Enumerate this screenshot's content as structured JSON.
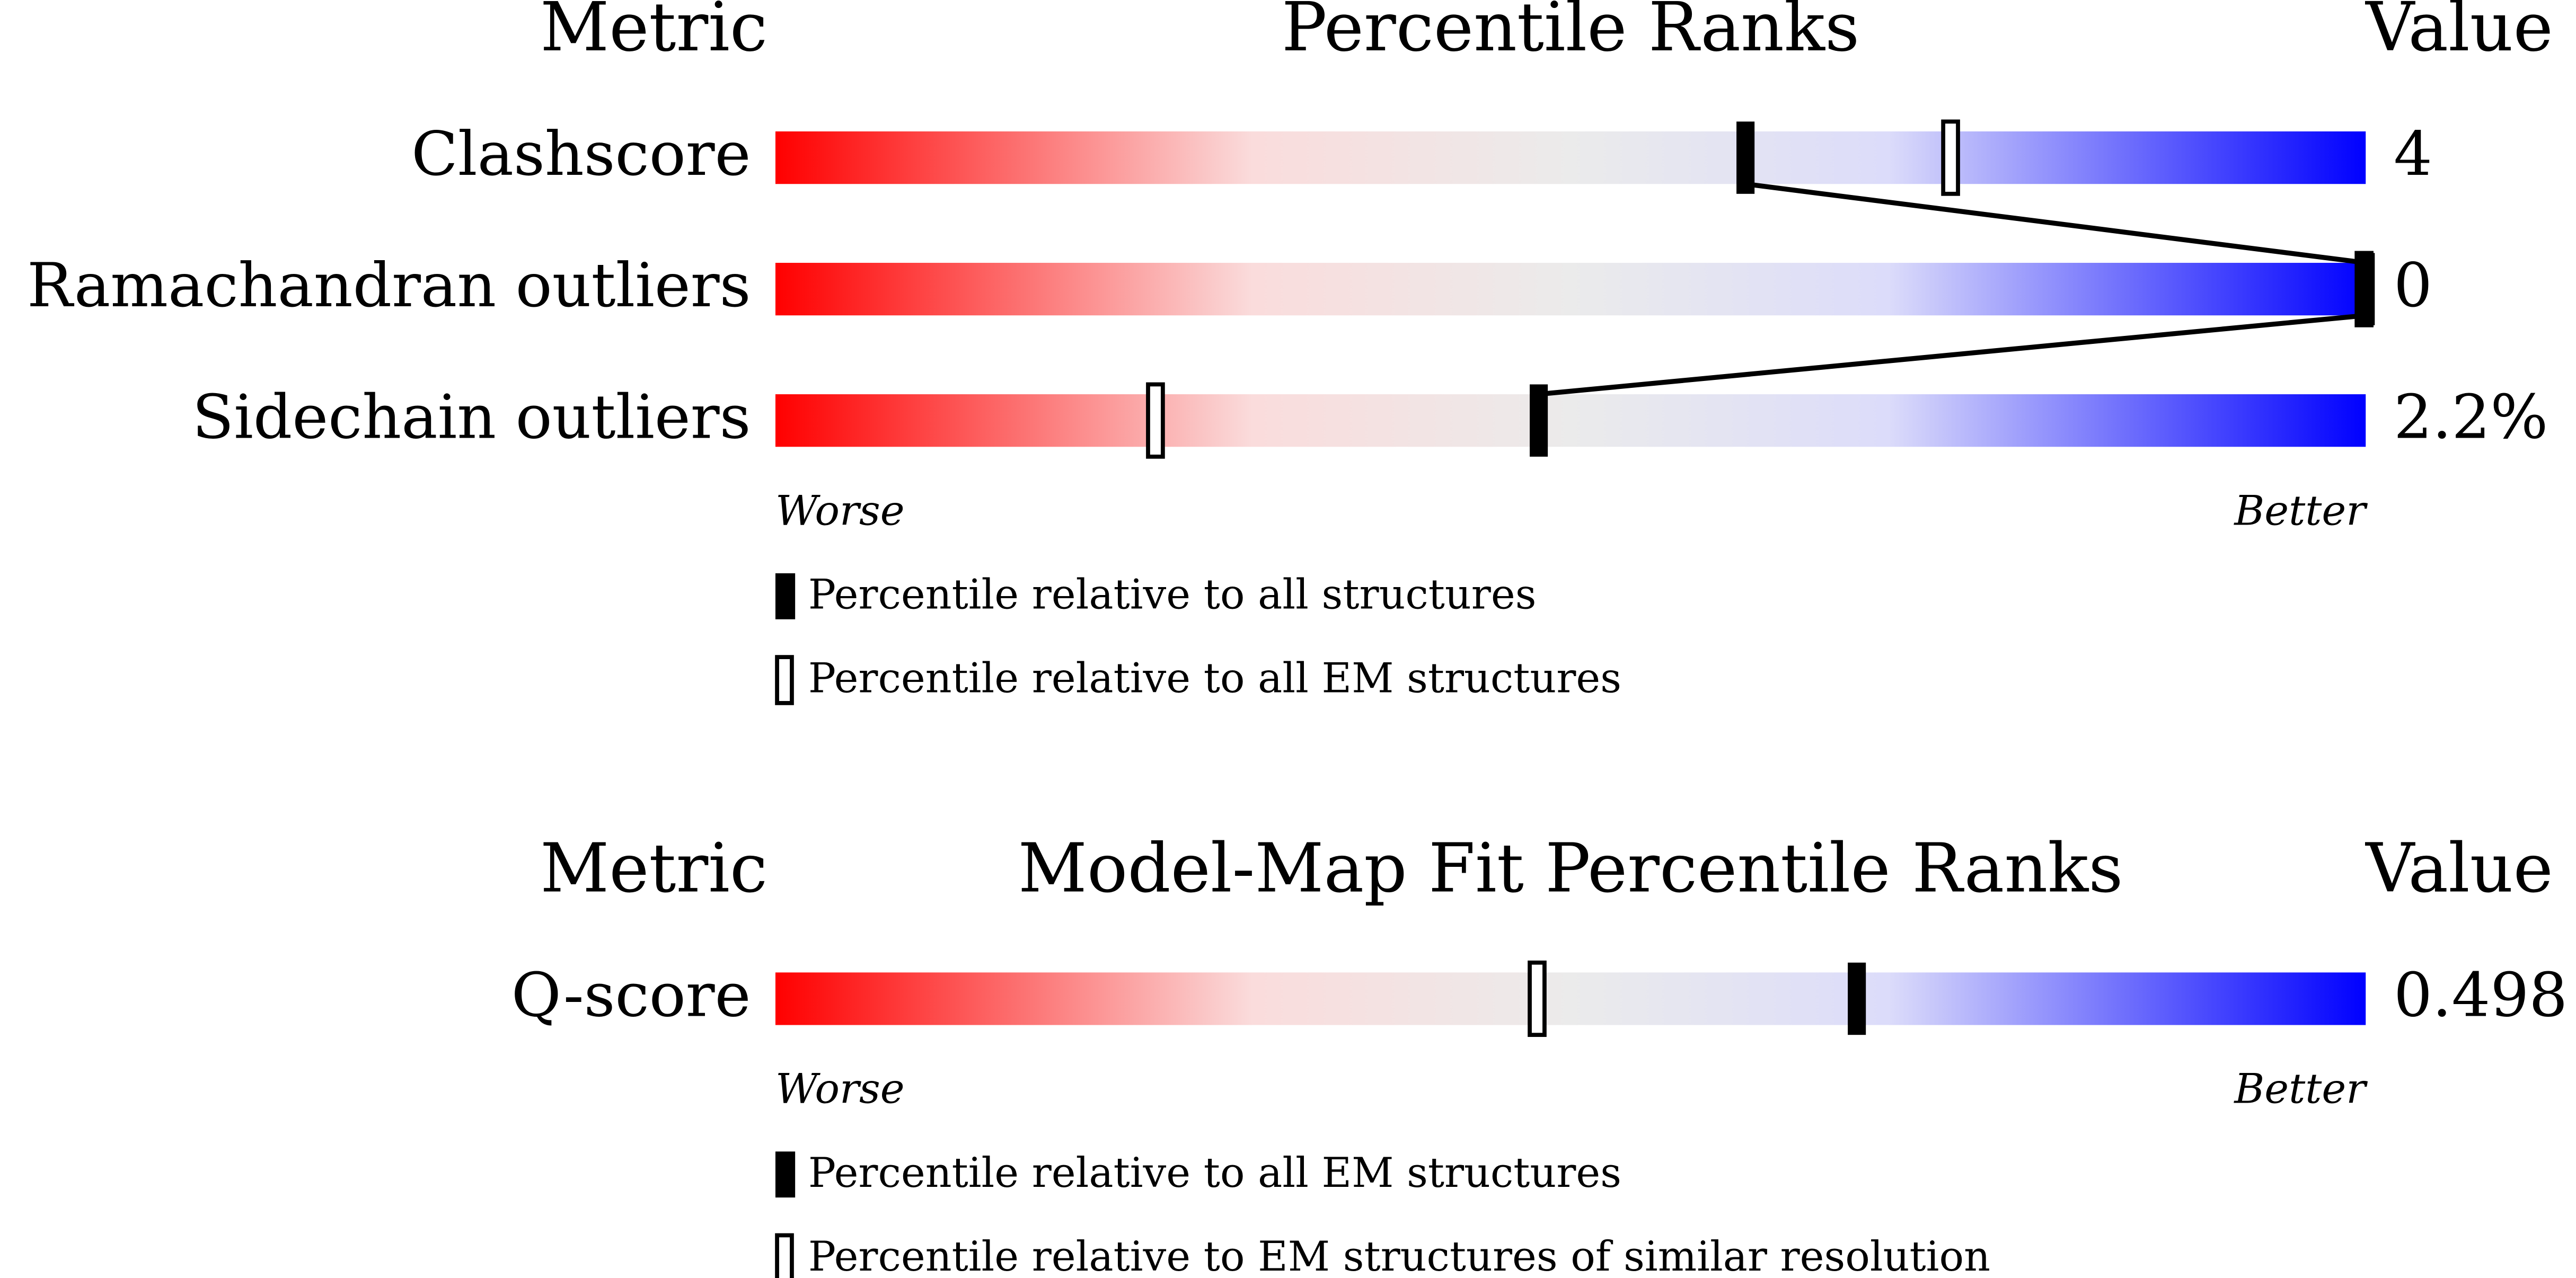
{
  "chart_data": [
    {
      "type": "percentile",
      "headers": [
        "Metric",
        "Percentile Ranks",
        "Value"
      ],
      "xlim": [
        0,
        100
      ],
      "categories": [
        "Clashscore",
        "Ramachandran outliers",
        "Sidechain outliers"
      ],
      "values": [
        4,
        0,
        2.2
      ],
      "value_labels": [
        "4",
        "0",
        "2.2%"
      ],
      "series": [
        {
          "name": "Percentile relative to all structures",
          "style": "filled",
          "color": "#000000",
          "values": [
            61,
            100,
            48
          ]
        },
        {
          "name": "Percentile relative to all EM structures",
          "style": "open",
          "color": "#000000",
          "values": [
            74,
            100,
            24
          ]
        }
      ],
      "worse": "Worse",
      "better": "Better"
    },
    {
      "type": "percentile",
      "headers": [
        "Metric",
        "Model-Map Fit Percentile Ranks",
        "Value"
      ],
      "xlim": [
        0,
        100
      ],
      "categories": [
        "Q-score"
      ],
      "values": [
        0.498
      ],
      "value_labels": [
        "0.498"
      ],
      "series": [
        {
          "name": "Percentile relative to all EM structures",
          "style": "filled",
          "color": "#000000",
          "values": [
            68
          ]
        },
        {
          "name": "Percentile relative to EM structures of similar resolution",
          "style": "open",
          "color": "#000000",
          "values": [
            48
          ]
        }
      ],
      "worse": "Worse",
      "better": "Better"
    }
  ]
}
